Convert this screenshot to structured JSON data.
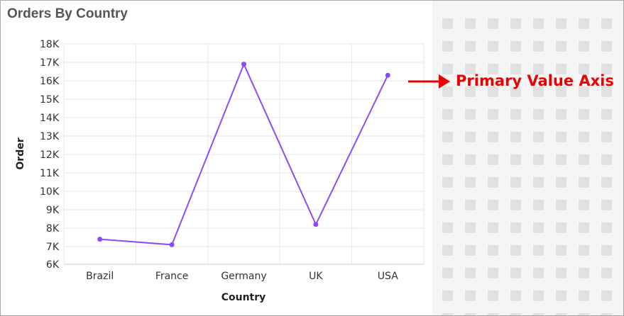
{
  "chart_data": {
    "type": "line",
    "title": "Orders By Country",
    "xlabel": "Country",
    "ylabel": "Order",
    "categories": [
      "Brazil",
      "France",
      "Germany",
      "UK",
      "USA"
    ],
    "series": [
      {
        "values": [
          7400,
          7100,
          16900,
          8200,
          16300
        ]
      }
    ],
    "ylim": [
      6000,
      18000
    ],
    "yticks": [
      "6K",
      "7K",
      "8K",
      "9K",
      "10K",
      "11K",
      "12K",
      "13K",
      "14K",
      "15K",
      "16K",
      "17K",
      "18K"
    ],
    "grid": true,
    "color": "#8c4cf5"
  },
  "annotation": {
    "text": "Primary Value Axis",
    "color": "#ee0000"
  }
}
